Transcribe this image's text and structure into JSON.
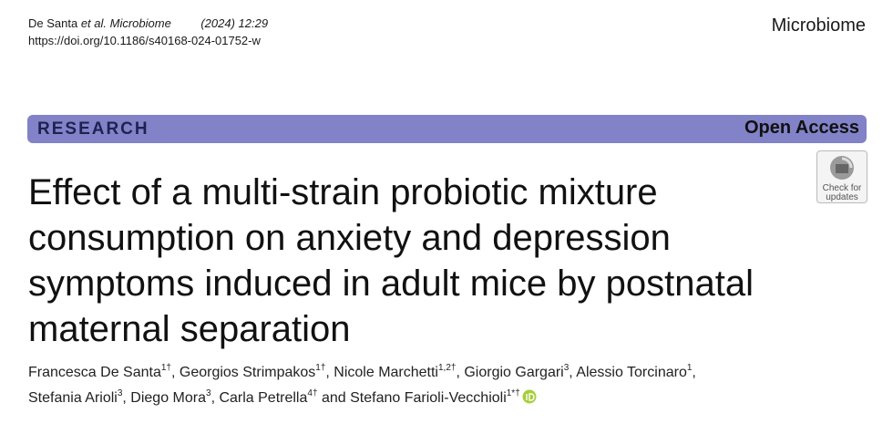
{
  "citation": {
    "authors": "De Santa",
    "etal": "et al.",
    "journal": "Microbiome",
    "issue": "(2024) 12:29",
    "doi": "https://doi.org/10.1186/s40168-024-01752-w"
  },
  "journal_name": "Microbiome",
  "banner": {
    "type": "RESEARCH",
    "access": "Open Access"
  },
  "check_updates": {
    "line1": "Check for",
    "line2": "updates"
  },
  "title_lines": [
    "Effect of a multi-strain probiotic mixture",
    "consumption on anxiety and depression",
    "symptoms induced in adult mice by postnatal",
    "maternal separation"
  ],
  "author_lines": [
    [
      {
        "name": "Francesca De Santa",
        "affil": "1†",
        "sep": ", "
      },
      {
        "name": "Georgios Strimpakos",
        "affil": "1†",
        "sep": ", "
      },
      {
        "name": "Nicole Marchetti",
        "affil": "1,2†",
        "sep": ", "
      },
      {
        "name": "Giorgio Gargari",
        "affil": "3",
        "sep": ", "
      },
      {
        "name": "Alessio Torcinaro",
        "affil": "1",
        "sep": ","
      }
    ],
    [
      {
        "name": "Stefania Arioli",
        "affil": "3",
        "sep": ", "
      },
      {
        "name": "Diego Mora",
        "affil": "3",
        "sep": ", "
      },
      {
        "name": "Carla Petrella",
        "affil": "4†",
        "sep": " and "
      },
      {
        "name": "Stefano Farioli-Vecchioli",
        "affil": "1*†"
      }
    ]
  ]
}
